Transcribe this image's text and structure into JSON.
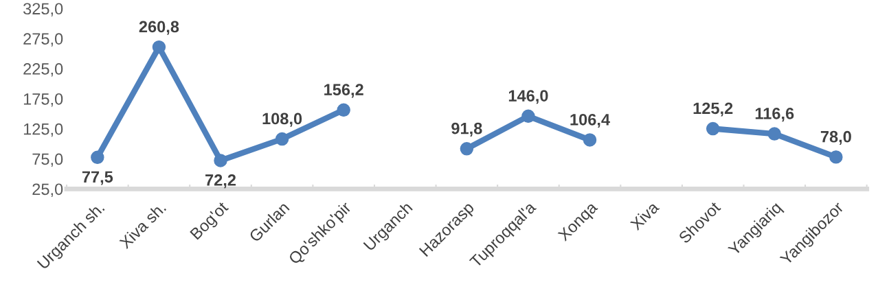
{
  "chart_data": {
    "type": "line",
    "categories": [
      "Urganch sh.",
      "Xiva sh.",
      "Bog'ot",
      "Gurlan",
      "Qo'shko'pir",
      "Urganch",
      "Hazorasp",
      "Tuproqqal'a",
      "Xonqa",
      "Xiva",
      "Shovot",
      "Yangiariq",
      "Yangibozor"
    ],
    "series": [
      {
        "color": "#4f81bd",
        "values": [
          77.5,
          260.8,
          72.2,
          108.0,
          156.2,
          null,
          91.8,
          146.0,
          106.4,
          null,
          125.2,
          116.6,
          78.0
        ],
        "value_labels": [
          "77,5",
          "260,8",
          "72,2",
          "108,0",
          "156,2",
          null,
          "91,8",
          "146,0",
          "106,4",
          null,
          "125,2",
          "116,6",
          "78,0"
        ]
      }
    ],
    "ylim": [
      25,
      325
    ],
    "yticks": [
      {
        "value": 25,
        "label": "25,0"
      },
      {
        "value": 75,
        "label": "75,0"
      },
      {
        "value": 125,
        "label": "125,0"
      },
      {
        "value": 175,
        "label": "175,0"
      },
      {
        "value": 225,
        "label": "225,0"
      },
      {
        "value": 275,
        "label": "275,0"
      },
      {
        "value": 325,
        "label": "325,0"
      }
    ],
    "grid": false,
    "legend": false,
    "marker": "circle",
    "line_style": "solid"
  }
}
